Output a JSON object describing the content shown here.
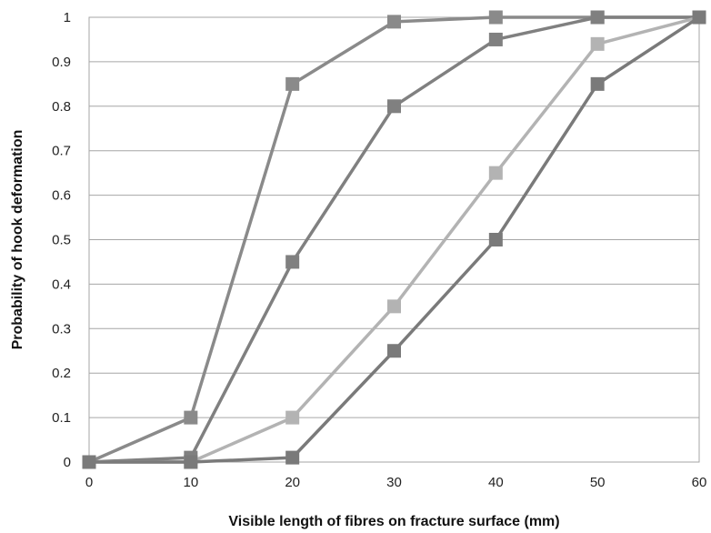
{
  "chart_data": {
    "type": "line",
    "title": "",
    "xlabel": "Visible length of fibres on fracture surface (mm)",
    "ylabel": "Probability of hook deformation",
    "x": [
      0,
      10,
      20,
      30,
      40,
      50,
      60
    ],
    "xlim": [
      0,
      60
    ],
    "ylim": [
      0,
      1
    ],
    "x_ticks": [
      "0",
      "10",
      "20",
      "30",
      "40",
      "50",
      "60"
    ],
    "y_ticks": [
      "0",
      "0.1",
      "0.2",
      "0.3",
      "0.4",
      "0.5",
      "0.6",
      "0.7",
      "0.8",
      "0.9",
      "1"
    ],
    "grid": "horizontal",
    "marker": "square",
    "series": [
      {
        "values": [
          0,
          0.1,
          0.85,
          0.99,
          1.0,
          1.0,
          1.0
        ],
        "color": "#8a8a8a"
      },
      {
        "values": [
          0,
          0.01,
          0.45,
          0.8,
          0.95,
          1.0,
          1.0
        ],
        "color": "#808080"
      },
      {
        "values": [
          0,
          0.0,
          0.1,
          0.35,
          0.65,
          0.94,
          1.0
        ],
        "color": "#b3b3b3"
      },
      {
        "values": [
          0,
          0.0,
          0.01,
          0.25,
          0.5,
          0.85,
          1.0
        ],
        "color": "#7a7a7a"
      }
    ]
  }
}
